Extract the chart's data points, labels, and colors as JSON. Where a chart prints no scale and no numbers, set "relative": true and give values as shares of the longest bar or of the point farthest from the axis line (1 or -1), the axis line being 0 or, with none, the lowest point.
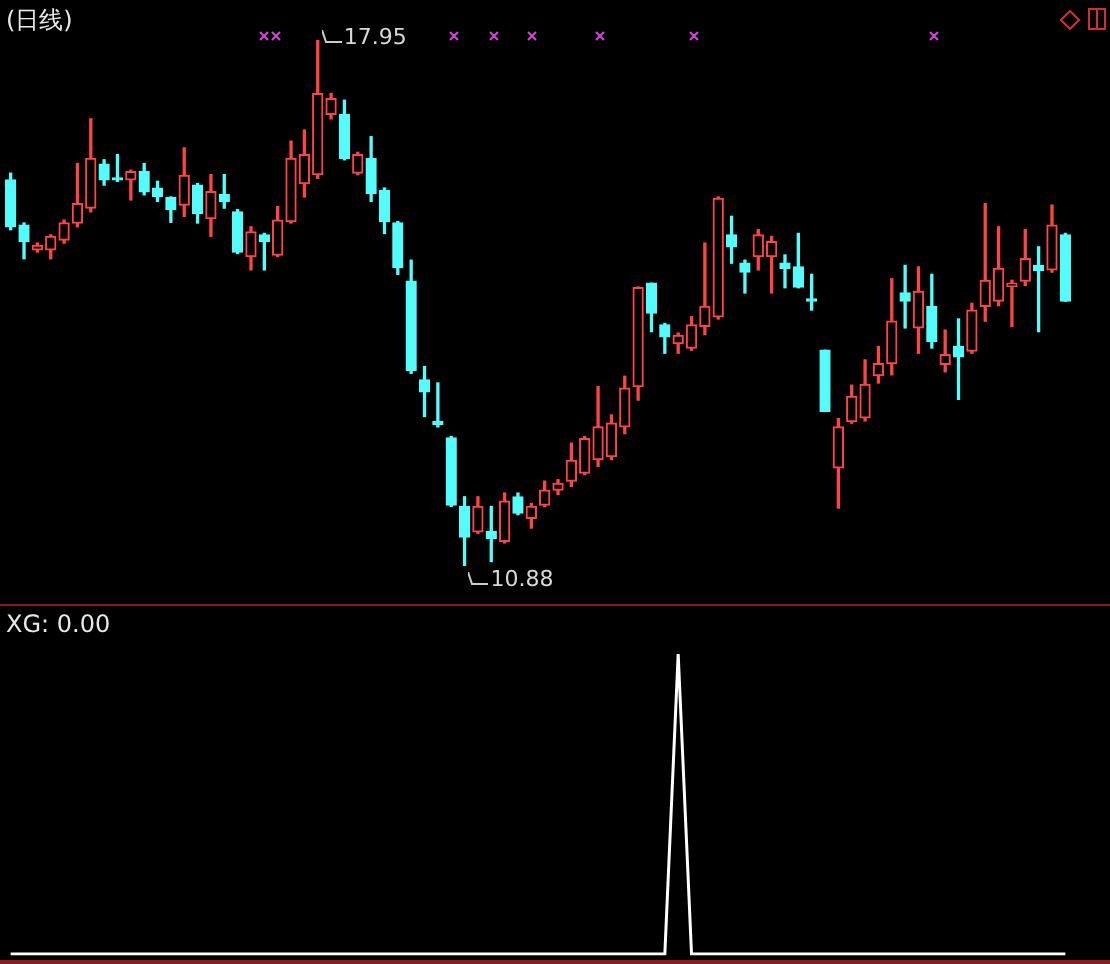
{
  "chart_data": [
    {
      "type": "candlestick",
      "title": "(日线)",
      "categories": [
        null,
        null,
        null,
        null,
        null,
        null,
        null,
        null,
        null,
        null,
        null,
        null,
        null,
        null,
        null,
        null,
        null,
        null,
        null,
        null,
        null,
        null,
        null,
        null,
        null,
        null,
        null,
        null,
        null,
        null,
        null,
        null,
        null,
        null,
        null,
        null,
        null,
        null,
        null,
        null,
        null,
        null,
        null,
        null,
        null,
        null,
        null,
        null,
        null,
        null,
        null,
        null,
        null,
        null,
        null,
        null,
        null,
        null,
        null,
        null,
        null,
        null,
        null,
        null,
        null,
        null,
        null,
        null,
        null,
        null,
        null,
        null,
        null,
        null,
        null,
        null,
        null,
        null,
        null,
        null
      ],
      "ohlc": [
        [
          16.07,
          16.16,
          15.4,
          15.44
        ],
        [
          15.46,
          15.49,
          15.01,
          15.24
        ],
        [
          15.13,
          15.22,
          15.1,
          15.19
        ],
        [
          15.13,
          15.33,
          15.01,
          15.31
        ],
        [
          15.26,
          15.53,
          15.22,
          15.49
        ],
        [
          15.49,
          16.29,
          15.44,
          15.75
        ],
        [
          15.69,
          16.89,
          15.64,
          16.36
        ],
        [
          16.28,
          16.34,
          16.0,
          16.07
        ],
        [
          16.09,
          16.41,
          16.05,
          16.07
        ],
        [
          16.07,
          16.2,
          15.8,
          16.18
        ],
        [
          16.18,
          16.29,
          15.87,
          15.91
        ],
        [
          15.96,
          16.05,
          15.78,
          15.85
        ],
        [
          15.83,
          15.84,
          15.5,
          15.67
        ],
        [
          15.73,
          16.5,
          15.58,
          16.13
        ],
        [
          16.0,
          16.02,
          15.49,
          15.62
        ],
        [
          15.55,
          16.14,
          15.31,
          15.91
        ],
        [
          15.87,
          16.14,
          15.69,
          15.78
        ],
        [
          15.64,
          15.67,
          15.08,
          15.1
        ],
        [
          15.04,
          15.44,
          14.86,
          15.37
        ],
        [
          15.33,
          15.35,
          14.86,
          15.24
        ],
        [
          15.06,
          15.71,
          15.04,
          15.53
        ],
        [
          15.51,
          16.59,
          15.49,
          16.36
        ],
        [
          16.02,
          16.74,
          15.84,
          16.41
        ],
        [
          16.14,
          17.95,
          16.09,
          17.23
        ],
        [
          16.95,
          17.23,
          16.89,
          17.16
        ],
        [
          16.95,
          17.14,
          16.34,
          16.36
        ],
        [
          16.16,
          16.44,
          16.14,
          16.41
        ],
        [
          16.36,
          16.65,
          15.78,
          15.89
        ],
        [
          15.93,
          15.96,
          15.35,
          15.51
        ],
        [
          15.49,
          15.51,
          14.8,
          14.89
        ],
        [
          14.71,
          14.99,
          13.47,
          13.51
        ],
        [
          13.38,
          13.56,
          12.89,
          13.22
        ],
        [
          12.82,
          13.34,
          12.75,
          12.78
        ],
        [
          12.6,
          12.62,
          11.68,
          11.7
        ],
        [
          11.68,
          11.81,
          10.88,
          11.27
        ],
        [
          11.34,
          11.81,
          11.32,
          11.68
        ],
        [
          11.34,
          11.68,
          10.94,
          11.25
        ],
        [
          11.21,
          11.86,
          11.19,
          11.75
        ],
        [
          11.81,
          11.86,
          11.57,
          11.59
        ],
        [
          11.52,
          11.72,
          11.39,
          11.68
        ],
        [
          11.7,
          12.02,
          11.68,
          11.9
        ],
        [
          11.9,
          12.04,
          11.84,
          11.99
        ],
        [
          12.02,
          12.53,
          11.95,
          12.3
        ],
        [
          12.13,
          12.62,
          12.11,
          12.59
        ],
        [
          12.31,
          13.29,
          12.22,
          12.75
        ],
        [
          12.35,
          12.91,
          12.31,
          12.8
        ],
        [
          12.75,
          13.43,
          12.66,
          13.27
        ],
        [
          13.29,
          14.63,
          13.11,
          14.62
        ],
        [
          14.68,
          14.68,
          14.03,
          14.28
        ],
        [
          14.12,
          14.14,
          13.74,
          13.96
        ],
        [
          13.87,
          14.01,
          13.74,
          13.98
        ],
        [
          13.81,
          14.23,
          13.78,
          14.12
        ],
        [
          14.1,
          15.22,
          13.99,
          14.37
        ],
        [
          14.23,
          15.84,
          14.2,
          15.82
        ],
        [
          15.33,
          15.58,
          14.95,
          15.17
        ],
        [
          14.95,
          14.99,
          14.55,
          14.83
        ],
        [
          15.04,
          15.4,
          14.86,
          15.33
        ],
        [
          15.04,
          15.31,
          14.55,
          15.24
        ],
        [
          14.95,
          15.06,
          14.62,
          14.88
        ],
        [
          14.9,
          15.35,
          14.62,
          14.63
        ],
        [
          14.47,
          14.8,
          14.32,
          14.44
        ],
        [
          13.78,
          13.78,
          12.96,
          12.96
        ],
        [
          12.2,
          12.86,
          11.66,
          12.75
        ],
        [
          12.82,
          13.31,
          12.8,
          13.16
        ],
        [
          12.87,
          13.65,
          12.83,
          13.32
        ],
        [
          13.44,
          13.83,
          13.34,
          13.6
        ],
        [
          13.6,
          14.74,
          13.45,
          14.17
        ],
        [
          14.55,
          14.92,
          14.08,
          14.44
        ],
        [
          14.08,
          14.9,
          13.74,
          14.57
        ],
        [
          14.37,
          14.8,
          13.81,
          13.9
        ],
        [
          13.59,
          14.05,
          13.49,
          13.72
        ],
        [
          13.83,
          14.2,
          13.12,
          13.69
        ],
        [
          13.77,
          14.41,
          13.74,
          14.32
        ],
        [
          14.37,
          15.75,
          14.17,
          14.72
        ],
        [
          14.44,
          15.44,
          14.38,
          14.88
        ],
        [
          14.64,
          14.72,
          14.1,
          14.68
        ],
        [
          14.71,
          15.4,
          14.65,
          15.01
        ],
        [
          14.92,
          15.17,
          14.03,
          14.85
        ],
        [
          14.86,
          15.73,
          14.83,
          15.46
        ],
        [
          15.33,
          15.35,
          14.44,
          14.44
        ]
      ],
      "colors": [
        "#54fcfc",
        "#54fcfc",
        "#ff4444",
        "#ff4444",
        "#ff4444",
        "#ff4444",
        "#ff4444",
        "#54fcfc",
        "#54fcfc",
        "#ff4444",
        "#54fcfc",
        "#54fcfc",
        "#54fcfc",
        "#ff4444",
        "#54fcfc",
        "#ff4444",
        "#54fcfc",
        "#54fcfc",
        "#ff4444",
        "#54fcfc",
        "#ff4444",
        "#ff4444",
        "#ff4444",
        "#ff4444",
        "#ff4444",
        "#54fcfc",
        "#ff4444",
        "#54fcfc",
        "#54fcfc",
        "#54fcfc",
        "#54fcfc",
        "#54fcfc",
        "#54fcfc",
        "#54fcfc",
        "#54fcfc",
        "#ff4444",
        "#54fcfc",
        "#ff4444",
        "#54fcfc",
        "#ff4444",
        "#ff4444",
        "#ff4444",
        "#ff4444",
        "#ff4444",
        "#ff4444",
        "#ff4444",
        "#ff4444",
        "#ff4444",
        "#54fcfc",
        "#54fcfc",
        "#ff4444",
        "#ff4444",
        "#ff4444",
        "#ff4444",
        "#54fcfc",
        "#54fcfc",
        "#ff4444",
        "#ff4444",
        "#54fcfc",
        "#54fcfc",
        "#54fcfc",
        "#54fcfc",
        "#ff4444",
        "#ff4444",
        "#ff4444",
        "#ff4444",
        "#ff4444",
        "#54fcfc",
        "#ff4444",
        "#54fcfc",
        "#ff4444",
        "#54fcfc",
        "#ff4444",
        "#ff4444",
        "#ff4444",
        "#ff4444",
        "#ff4444",
        "#54fcfc",
        "#ff4444",
        "#54fcfc"
      ],
      "annotations": [
        "17.95",
        "10.88"
      ]
    },
    {
      "type": "line",
      "title": "XG: 0.00",
      "relative": true,
      "categories": [
        null,
        null,
        null,
        null,
        null,
        null,
        null,
        null,
        null,
        null,
        null,
        null,
        null,
        null,
        null,
        null,
        null,
        null,
        null,
        null,
        null,
        null,
        null,
        null,
        null,
        null,
        null,
        null,
        null,
        null,
        null,
        null,
        null,
        null,
        null,
        null,
        null,
        null,
        null,
        null,
        null,
        null,
        null,
        null,
        null,
        null,
        null,
        null,
        null,
        null,
        null,
        null,
        null,
        null,
        null,
        null,
        null,
        null,
        null,
        null,
        null,
        null,
        null,
        null,
        null,
        null,
        null,
        null,
        null,
        null,
        null,
        null,
        null,
        null,
        null,
        null,
        null,
        null,
        null,
        null
      ],
      "series": [
        {
          "color": "#ffffff",
          "values": [
            0,
            0,
            0,
            0,
            0,
            0,
            0,
            0,
            0,
            0,
            0,
            0,
            0,
            0,
            0,
            0,
            0,
            0,
            0,
            0,
            0,
            0,
            0,
            0,
            0,
            0,
            0,
            0,
            0,
            0,
            0,
            0,
            0,
            0,
            0,
            0,
            0,
            0,
            0,
            0,
            0,
            0,
            0,
            0,
            0,
            0,
            0,
            0,
            0,
            0,
            1,
            0,
            0,
            0,
            0,
            0,
            0,
            0,
            0,
            0,
            0,
            0,
            0,
            0,
            0,
            0,
            0,
            0,
            0,
            0,
            0,
            0,
            0,
            0,
            0,
            0,
            0,
            0,
            0,
            0
          ]
        }
      ]
    }
  ]
}
